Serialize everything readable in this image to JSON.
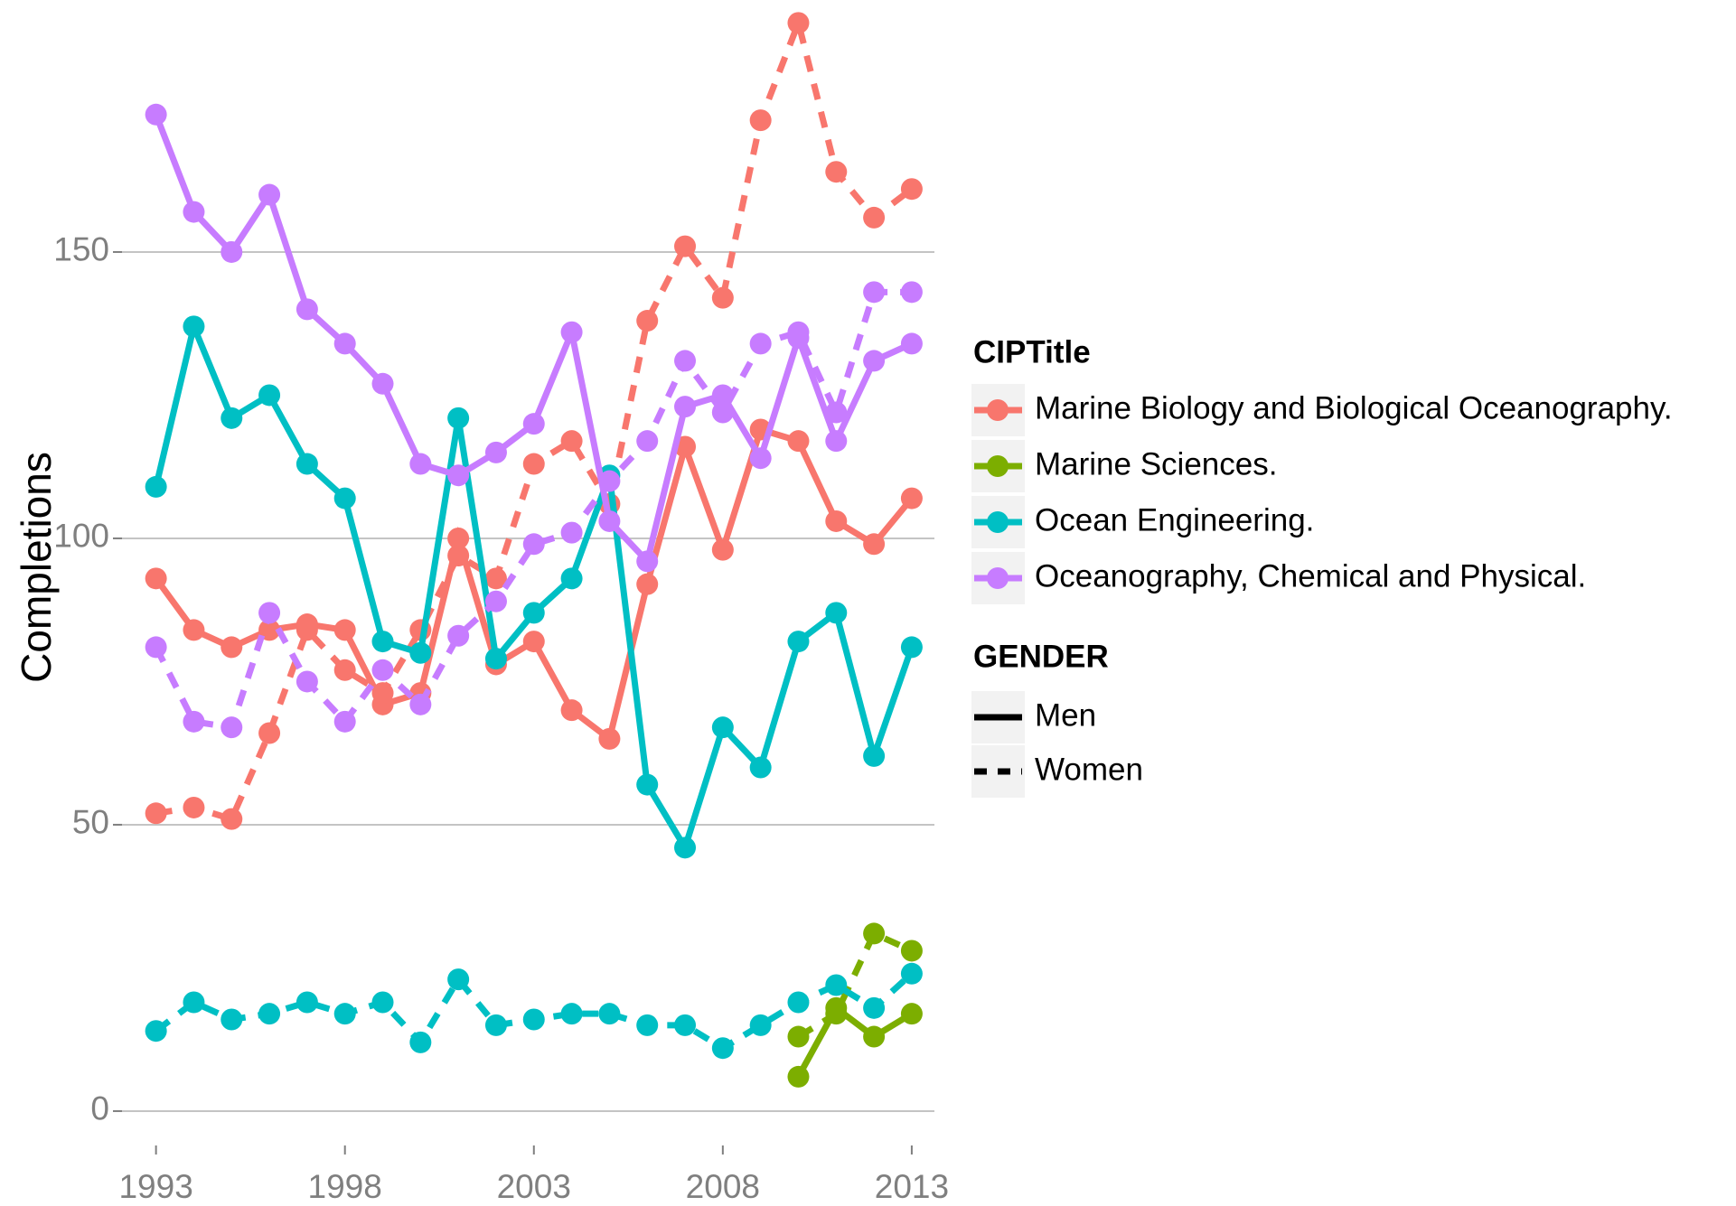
{
  "chart_data": {
    "type": "line",
    "y_label": "Completions",
    "x": [
      1993,
      1994,
      1995,
      1996,
      1997,
      1998,
      1999,
      2000,
      2001,
      2002,
      2003,
      2004,
      2005,
      2006,
      2007,
      2008,
      2009,
      2010,
      2011,
      2012,
      2013
    ],
    "xlim": [
      1992.1,
      2013.6
    ],
    "xticks": [
      1993,
      1998,
      2003,
      2008,
      2013
    ],
    "ylim": [
      -6,
      194
    ],
    "yticks": [
      0,
      50,
      100,
      150
    ],
    "grid": true,
    "color_legend_title": "CIPTitle",
    "gender_legend_title": "GENDER",
    "genders": [
      {
        "name": "Men",
        "dash": "solid"
      },
      {
        "name": "Women",
        "dash": "dashed"
      }
    ],
    "series": [
      {
        "name": "Marine Biology and Biological Oceanography.",
        "color": "#f8766d",
        "values_by_gender": [
          [
            93,
            84,
            81,
            84,
            85,
            84,
            71,
            73,
            100,
            78,
            82,
            70,
            65,
            92,
            116,
            98,
            119,
            117,
            103,
            99,
            107
          ],
          [
            52,
            53,
            51,
            66,
            84,
            77,
            73,
            84,
            97,
            93,
            113,
            117,
            106,
            138,
            151,
            142,
            173,
            190,
            164,
            156,
            161
          ]
        ]
      },
      {
        "name": "Marine Sciences.",
        "color": "#7cae00",
        "values_by_gender": [
          [
            null,
            null,
            null,
            null,
            null,
            null,
            null,
            null,
            null,
            null,
            null,
            null,
            null,
            null,
            null,
            null,
            null,
            6,
            18,
            13,
            17
          ],
          [
            null,
            null,
            null,
            null,
            null,
            null,
            null,
            null,
            null,
            null,
            null,
            null,
            null,
            null,
            null,
            null,
            null,
            13,
            17,
            31,
            28
          ]
        ]
      },
      {
        "name": "Ocean Engineering.",
        "color": "#00bfc4",
        "values_by_gender": [
          [
            109,
            137,
            121,
            125,
            113,
            107,
            82,
            80,
            121,
            79,
            87,
            93,
            111,
            57,
            46,
            67,
            60,
            82,
            87,
            62,
            81
          ],
          [
            14,
            19,
            16,
            17,
            19,
            17,
            19,
            12,
            23,
            15,
            16,
            17,
            17,
            15,
            15,
            11,
            15,
            19,
            22,
            18,
            24
          ]
        ]
      },
      {
        "name": "Oceanography, Chemical and Physical.",
        "color": "#c77cff",
        "values_by_gender": [
          [
            174,
            157,
            150,
            160,
            140,
            134,
            127,
            113,
            111,
            115,
            120,
            136,
            103,
            96,
            123,
            125,
            114,
            135,
            117,
            131,
            134
          ],
          [
            81,
            68,
            67,
            87,
            75,
            68,
            77,
            71,
            83,
            89,
            99,
            101,
            110,
            117,
            131,
            122,
            134,
            136,
            122,
            143,
            143
          ]
        ]
      }
    ]
  }
}
